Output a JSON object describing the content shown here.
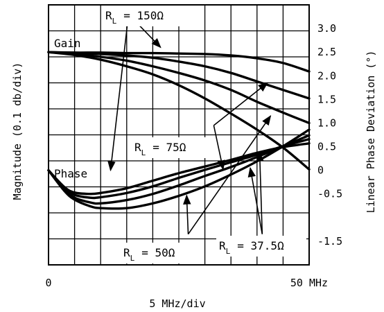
{
  "chart_data": {
    "type": "line",
    "x_axis": {
      "min": 0,
      "max": 50,
      "step": 5,
      "tick_labels": [
        {
          "x": 0,
          "label": "0"
        },
        {
          "x": 50,
          "label": "50 MHz"
        }
      ],
      "title": "5 MHz/div"
    },
    "y_left": {
      "title": "Magnitude (0.1 db/div)",
      "divisions": 10
    },
    "y_right": {
      "title": "Linear Phase Deviation (°)",
      "min": -2.0,
      "max": 3.5,
      "tick_labels": [
        {
          "v": 3.0,
          "label": "3.0"
        },
        {
          "v": 2.5,
          "label": "2.5"
        },
        {
          "v": 2.0,
          "label": "2.0"
        },
        {
          "v": 1.5,
          "label": "1.5"
        },
        {
          "v": 1.0,
          "label": "1.0"
        },
        {
          "v": 0.5,
          "label": "0.5"
        },
        {
          "v": 0.0,
          "label": "0"
        },
        {
          "v": -0.5,
          "label": "-0.5"
        },
        {
          "v": -1.5,
          "label": "-1.5"
        }
      ]
    },
    "grid": true,
    "group_labels": {
      "gain": "Gain",
      "phase": "Phase"
    },
    "annotations": {
      "rl_150": {
        "r": "R",
        "sub": "L",
        "value": "= 150Ω"
      },
      "rl_75": {
        "r": "R",
        "sub": "L",
        "value": "= 75Ω"
      },
      "rl_50": {
        "r": "R",
        "sub": "L",
        "value": "= 50Ω"
      },
      "rl_37_5": {
        "r": "R",
        "sub": "L",
        "value": "= 37.5Ω"
      }
    },
    "gain_series": [
      {
        "rl": "150Ω",
        "x": [
          0,
          5,
          10,
          15,
          20,
          25,
          30,
          35,
          40,
          45,
          50
        ],
        "y": [
          2.5,
          2.49,
          2.49,
          2.48,
          2.48,
          2.47,
          2.46,
          2.43,
          2.37,
          2.27,
          2.09
        ]
      },
      {
        "rl": "75Ω",
        "x": [
          0,
          5,
          10,
          15,
          20,
          25,
          30,
          35,
          40,
          45,
          50
        ],
        "y": [
          2.5,
          2.48,
          2.46,
          2.43,
          2.38,
          2.3,
          2.2,
          2.06,
          1.88,
          1.7,
          1.52
        ]
      },
      {
        "rl": "50Ω",
        "x": [
          0,
          5,
          10,
          15,
          20,
          25,
          30,
          35,
          40,
          45,
          50
        ],
        "y": [
          2.5,
          2.46,
          2.4,
          2.32,
          2.2,
          2.06,
          1.9,
          1.7,
          1.45,
          1.22,
          1.0
        ]
      },
      {
        "rl": "37.5Ω",
        "x": [
          0,
          5,
          10,
          15,
          20,
          25,
          30,
          35,
          40,
          45,
          50
        ],
        "y": [
          2.5,
          2.44,
          2.34,
          2.2,
          2.03,
          1.8,
          1.52,
          1.2,
          0.86,
          0.48,
          0.02
        ]
      }
    ],
    "phase_series": [
      {
        "rl": "150Ω",
        "x": [
          0,
          3,
          5,
          8,
          10,
          15,
          20,
          25,
          30,
          35,
          40,
          45,
          50
        ],
        "y": [
          0.0,
          -0.35,
          -0.47,
          -0.5,
          -0.48,
          -0.38,
          -0.22,
          -0.06,
          0.08,
          0.22,
          0.37,
          0.49,
          0.57
        ]
      },
      {
        "rl": "75Ω",
        "x": [
          0,
          3,
          5,
          8,
          10,
          15,
          20,
          25,
          30,
          35,
          40,
          45,
          50
        ],
        "y": [
          0.0,
          -0.38,
          -0.52,
          -0.58,
          -0.57,
          -0.48,
          -0.34,
          -0.16,
          0.01,
          0.17,
          0.33,
          0.51,
          0.66
        ]
      },
      {
        "rl": "50Ω",
        "x": [
          0,
          3,
          5,
          8,
          10,
          15,
          20,
          25,
          30,
          35,
          40,
          45,
          50
        ],
        "y": [
          0.0,
          -0.4,
          -0.58,
          -0.68,
          -0.7,
          -0.63,
          -0.5,
          -0.32,
          -0.12,
          0.07,
          0.28,
          0.51,
          0.74
        ]
      },
      {
        "rl": "37.5Ω",
        "x": [
          0,
          3,
          5,
          8,
          10,
          15,
          20,
          25,
          30,
          35,
          40,
          45,
          50
        ],
        "y": [
          0.0,
          -0.43,
          -0.62,
          -0.76,
          -0.8,
          -0.8,
          -0.7,
          -0.54,
          -0.34,
          -0.09,
          0.19,
          0.51,
          0.86
        ]
      }
    ],
    "callouts": [
      {
        "group": "rl_150",
        "from": [
          15.3,
          3.25
        ],
        "to": [
          11.9,
          0.0
        ]
      },
      {
        "group": "rl_150",
        "from": [
          15.8,
          3.25
        ],
        "to": [
          21.5,
          2.6
        ]
      },
      {
        "group": "rl_75",
        "from": [
          31.7,
          0.95
        ],
        "to": [
          42.0,
          1.85
        ]
      },
      {
        "group": "rl_75",
        "from": [
          31.7,
          0.95
        ],
        "to": [
          33.5,
          0.02
        ]
      },
      {
        "group": "rl_50",
        "from": [
          26.8,
          -1.35
        ],
        "to": [
          42.6,
          1.15
        ]
      },
      {
        "group": "rl_50",
        "from": [
          26.8,
          -1.35
        ],
        "to": [
          26.5,
          -0.53
        ]
      },
      {
        "group": "rl_37_5",
        "from": [
          41.0,
          -1.35
        ],
        "to": [
          40.5,
          0.38
        ]
      },
      {
        "group": "rl_37_5",
        "from": [
          41.0,
          -1.35
        ],
        "to": [
          38.7,
          0.05
        ]
      }
    ]
  }
}
